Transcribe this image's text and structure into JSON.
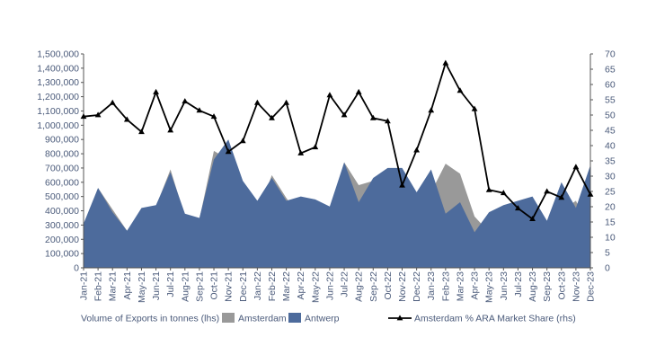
{
  "chart_data": {
    "type": "area",
    "title": "",
    "xlabel": "",
    "ylabel": "Volume of Exports in tonnes (lhs)",
    "y2label": "Amsterdam % ARA Market Share (rhs)",
    "ylim": [
      0,
      1500000
    ],
    "y2lim": [
      0,
      70
    ],
    "y_ticks": [
      "0",
      "100,000",
      "200,000",
      "300,000",
      "400,000",
      "500,000",
      "600,000",
      "700,000",
      "800,000",
      "900,000",
      "1,000,000",
      "1,100,000",
      "1,200,000",
      "1,300,000",
      "1,400,000",
      "1,500,000"
    ],
    "y2_ticks": [
      "0",
      "5",
      "10",
      "15",
      "20",
      "25",
      "30",
      "35",
      "40",
      "45",
      "50",
      "55",
      "60",
      "65",
      "70"
    ],
    "categories": [
      "Jan-21",
      "Feb-21",
      "Mar-21",
      "Apr-21",
      "May-21",
      "Jun-21",
      "Jul-21",
      "Aug-21",
      "Sep-21",
      "Oct-21",
      "Nov-21",
      "Dec-21",
      "Jan-22",
      "Feb-22",
      "Mar-22",
      "Apr-22",
      "May-22",
      "Jun-22",
      "Jul-22",
      "Aug-22",
      "Sep-22",
      "Oct-22",
      "Nov-22",
      "Dec-22",
      "Jan-23",
      "Feb-23",
      "Mar-23",
      "Apr-23",
      "May-23",
      "Jun-23",
      "Jul-23",
      "Aug-23",
      "Sep-23",
      "Oct-23",
      "Nov-23",
      "Dec-23"
    ],
    "series": [
      {
        "name": "Amsterdam",
        "kind": "area",
        "axis": "left",
        "color": "#999999",
        "values": [
          300000,
          560000,
          410000,
          260000,
          400000,
          430000,
          690000,
          360000,
          340000,
          820000,
          760000,
          470000,
          380000,
          650000,
          490000,
          350000,
          360000,
          400000,
          740000,
          580000,
          610000,
          650000,
          310000,
          350000,
          530000,
          730000,
          660000,
          360000,
          250000,
          270000,
          310000,
          250000,
          280000,
          400000,
          470000,
          260000
        ]
      },
      {
        "name": "Antwerp",
        "kind": "area",
        "axis": "left",
        "color": "#4d6b9c",
        "values": [
          310000,
          560000,
          390000,
          260000,
          420000,
          440000,
          670000,
          380000,
          350000,
          760000,
          900000,
          610000,
          470000,
          630000,
          470000,
          500000,
          480000,
          430000,
          740000,
          460000,
          630000,
          700000,
          700000,
          530000,
          690000,
          380000,
          460000,
          250000,
          390000,
          440000,
          470000,
          500000,
          330000,
          600000,
          420000,
          720000
        ]
      },
      {
        "name": "Amsterdam % ARA Market Share",
        "kind": "line",
        "axis": "right",
        "color": "#000000",
        "values": [
          49.5,
          50,
          54,
          48.5,
          44.5,
          57.5,
          45,
          54.5,
          51.5,
          49.5,
          38,
          41.5,
          54,
          49,
          54,
          37.5,
          39.5,
          56.5,
          50,
          57.5,
          49,
          48,
          27,
          38.5,
          51.5,
          67,
          58,
          52,
          25.5,
          24.5,
          19.5,
          16,
          25,
          23,
          33,
          24
        ]
      }
    ],
    "legend": [
      "Amsterdam",
      "Antwerp",
      "Amsterdam % ARA Market Share (rhs)"
    ],
    "legend_placement": "bottom"
  }
}
